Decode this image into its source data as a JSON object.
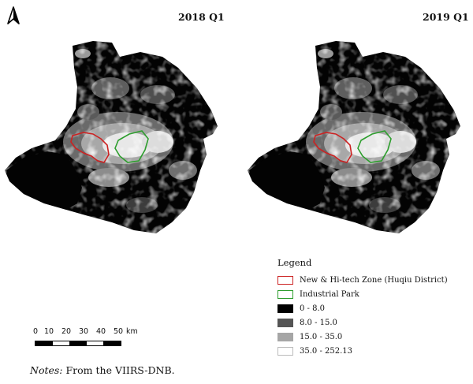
{
  "panels": [
    {
      "title": "2018 Q1"
    },
    {
      "title": "2019 Q1"
    }
  ],
  "legend": {
    "title": "Legend",
    "items": [
      {
        "label": "New & Hi-tech Zone (Huqiu District)",
        "type": "outline",
        "color": "#cc2222"
      },
      {
        "label": "Industrial Park",
        "type": "outline",
        "color": "#2e9e2e"
      },
      {
        "label": "0 - 8.0",
        "type": "fill",
        "color": "#000000"
      },
      {
        "label": "8.0 - 15.0",
        "type": "fill",
        "color": "#555555"
      },
      {
        "label": "15.0 - 35.0",
        "type": "fill",
        "color": "#a6a6a6"
      },
      {
        "label": "35.0 - 252.13",
        "type": "fill",
        "color": "#ffffff"
      }
    ]
  },
  "scale_bar": {
    "ticks": [
      "0",
      "10",
      "20",
      "30",
      "40",
      "50"
    ],
    "unit": "km"
  },
  "notes": {
    "prefix": "Notes:",
    "text": "From the VIIRS-DNB."
  }
}
